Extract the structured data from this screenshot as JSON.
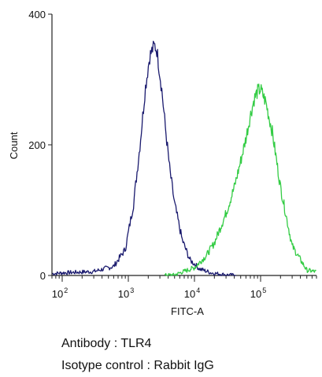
{
  "chart_data": {
    "type": "line",
    "title": "",
    "xlabel": "FITC-A",
    "ylabel": "Count",
    "x_scale": "log",
    "xlim": [
      70,
      700000
    ],
    "ylim": [
      0,
      400
    ],
    "y_ticks": [
      {
        "value": 0,
        "label": "0"
      },
      {
        "value": 200,
        "label": "200"
      },
      {
        "value": 400,
        "label": "400"
      }
    ],
    "x_ticks": [
      {
        "value": 100,
        "base": "10",
        "exp": "2"
      },
      {
        "value": 1000,
        "base": "10",
        "exp": "3"
      },
      {
        "value": 10000,
        "base": "10",
        "exp": "4"
      },
      {
        "value": 100000,
        "base": "10",
        "exp": "5"
      }
    ],
    "grid": false,
    "series": [
      {
        "color": "#1a1a6e",
        "x": [
          100,
          300,
          600,
          900,
          1200,
          1500,
          1800,
          2100,
          2300,
          2500,
          2700,
          2900,
          3200,
          3600,
          4200,
          5000,
          6500,
          8500,
          12000,
          18000,
          30000
        ],
        "y": [
          4,
          6,
          14,
          40,
          110,
          200,
          285,
          335,
          345,
          352,
          345,
          320,
          285,
          230,
          165,
          110,
          55,
          24,
          10,
          4,
          1
        ]
      },
      {
        "color": "#33cc44",
        "x": [
          5000,
          10000,
          15000,
          20000,
          30000,
          40000,
          50000,
          60000,
          70000,
          80000,
          90000,
          100000,
          120000,
          150000,
          200000,
          300000,
          500000
        ],
        "y": [
          1,
          12,
          30,
          50,
          95,
          135,
          175,
          210,
          245,
          270,
          282,
          285,
          265,
          220,
          135,
          45,
          8
        ]
      }
    ]
  },
  "caption": {
    "antibody": "Antibody : TLR4",
    "isotype": "Isotype control : Rabbit IgG"
  }
}
